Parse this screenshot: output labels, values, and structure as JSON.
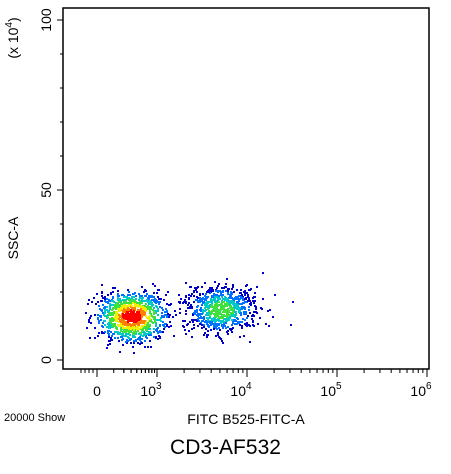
{
  "chart_data": {
    "type": "scatter",
    "style": "flow cytometry density dot plot",
    "xlabel": "FITC B525-FITC-A",
    "ylabel": "SSC-A",
    "y_scale_label": "(x 10",
    "y_scale_exp": "4",
    "y_scale_close": ")",
    "x_scale": "biexponential",
    "y_scale": "linear",
    "ylim": [
      0,
      100
    ],
    "y_ticks": [
      {
        "value": 0,
        "label": "0"
      },
      {
        "value": 50,
        "label": "50"
      },
      {
        "value": 100,
        "label": "100"
      }
    ],
    "x_ticks": [
      {
        "value": 0,
        "label": "0"
      },
      {
        "value": 1000,
        "label": "10",
        "exp": "3"
      },
      {
        "value": 10000,
        "label": "10",
        "exp": "4"
      },
      {
        "value": 100000,
        "label": "10",
        "exp": "5"
      },
      {
        "value": 1000000,
        "label": "10",
        "exp": "6"
      }
    ],
    "event_count_label": "20000 Show",
    "populations": [
      {
        "name": "low",
        "x_center": 300,
        "x_spread": 350,
        "y_center": 13,
        "y_spread": 4
      },
      {
        "name": "high",
        "x_center": 5000,
        "x_spread": 2500,
        "y_center": 15,
        "y_spread": 4
      }
    ],
    "density_colors": [
      "#0000c8",
      "#0070ff",
      "#00c8c8",
      "#40e040",
      "#f0f000",
      "#ff8000",
      "#ff0000"
    ]
  },
  "caption": "CD3-AF532"
}
